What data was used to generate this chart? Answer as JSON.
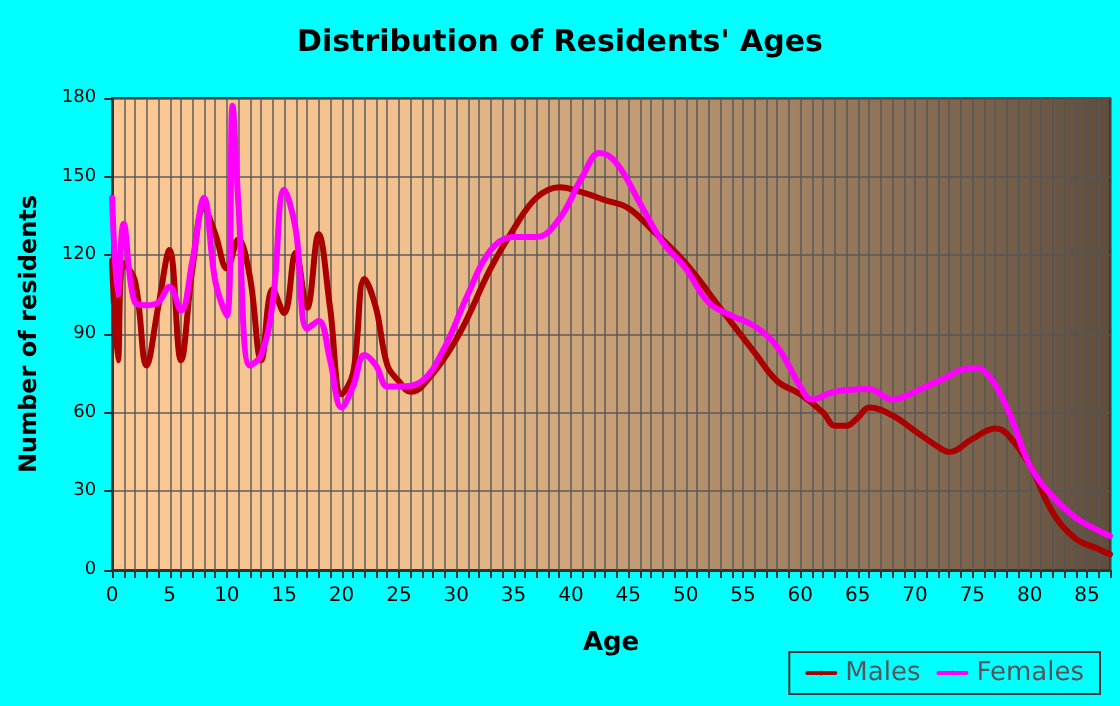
{
  "chart_data": {
    "type": "line",
    "title": "Distribution of Residents' Ages",
    "xlabel": "Age",
    "ylabel": "Number of residents",
    "xlim": [
      0,
      87
    ],
    "xticks": [
      0,
      5,
      10,
      15,
      20,
      25,
      30,
      35,
      40,
      45,
      50,
      55,
      60,
      65,
      70,
      75,
      80,
      85
    ],
    "ylim": [
      0,
      180
    ],
    "yticks": [
      0,
      30,
      60,
      90,
      120,
      150,
      180
    ],
    "grid": true,
    "legend": "bottom right",
    "marker": "none",
    "line_style": "solid",
    "series": [
      {
        "name": "Males",
        "color": "#aa0000",
        "x": [
          0,
          0.5,
          1,
          2,
          3,
          4,
          5,
          6,
          7,
          8,
          9,
          10,
          11,
          12,
          13,
          14,
          15,
          16,
          17,
          18,
          19,
          20,
          21,
          22,
          23,
          24,
          25,
          26,
          27,
          30,
          33,
          35,
          37,
          39,
          41,
          43,
          45,
          47,
          50,
          53,
          56,
          58,
          60,
          62,
          63,
          64,
          65,
          66,
          68,
          70,
          72,
          73,
          75,
          77,
          78,
          80,
          82,
          84,
          86,
          87
        ],
        "values": [
          118,
          80,
          117,
          110,
          78,
          100,
          122,
          80,
          115,
          138,
          128,
          115,
          126,
          112,
          80,
          107,
          98,
          121,
          100,
          128,
          100,
          67,
          75,
          111,
          100,
          78,
          72,
          68,
          70,
          88,
          115,
          130,
          142,
          146,
          144,
          141,
          138,
          130,
          117,
          100,
          83,
          72,
          67,
          60,
          55,
          55,
          58,
          62,
          59,
          53,
          47,
          45,
          50,
          54,
          52,
          40,
          22,
          12,
          8,
          6
        ]
      },
      {
        "name": "Females",
        "color": "#ff00ff",
        "x": [
          0,
          0.5,
          1,
          2,
          3,
          4,
          5,
          6,
          7,
          8,
          9,
          10,
          10.5,
          11,
          12,
          13,
          14,
          15,
          16,
          17,
          18,
          19,
          20,
          21,
          22,
          23,
          24,
          25,
          27,
          29,
          31,
          33,
          35,
          37,
          39,
          41,
          42.5,
          44,
          46,
          48,
          50,
          52,
          54,
          56,
          58,
          60,
          61,
          63,
          66,
          68,
          70,
          72,
          75,
          76,
          78,
          80,
          82,
          84,
          86,
          87
        ],
        "values": [
          142,
          105,
          132,
          102,
          101,
          102,
          108,
          99,
          118,
          142,
          110,
          97,
          177,
          140,
          78,
          82,
          102,
          145,
          130,
          92,
          95,
          80,
          62,
          70,
          82,
          78,
          70,
          70,
          72,
          85,
          105,
          122,
          127,
          127,
          134,
          150,
          159,
          155,
          140,
          125,
          115,
          102,
          97,
          93,
          85,
          70,
          65,
          68,
          69,
          65,
          68,
          72,
          77,
          76,
          62,
          40,
          28,
          20,
          15,
          13
        ]
      }
    ]
  }
}
